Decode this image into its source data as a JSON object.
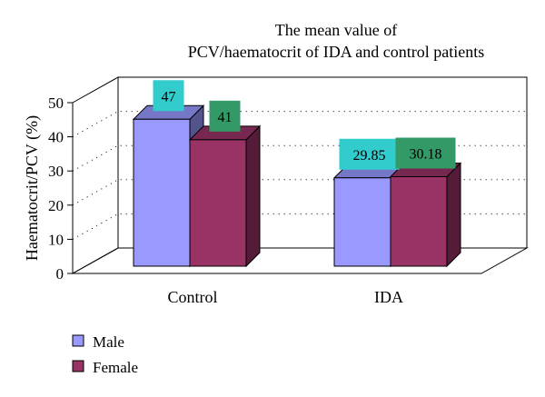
{
  "chart_data": {
    "type": "bar",
    "title_lines": [
      "The mean value of",
      "PCV/haematocrit of IDA and control patients"
    ],
    "xlabel": "",
    "ylabel": "Haematocrit/PCV (%)",
    "categories": [
      "Control",
      "IDA"
    ],
    "series": [
      {
        "name": "Male",
        "values": [
          47,
          29.85
        ],
        "labels": [
          "47",
          "29.85"
        ],
        "color": "#9999ff",
        "label_bg": "#33cccc"
      },
      {
        "name": "Female",
        "values": [
          41,
          30.18
        ],
        "labels": [
          "41",
          "30.18"
        ],
        "color": "#993366",
        "label_bg": "#339966"
      }
    ],
    "yticks": [
      "0",
      "10",
      "20",
      "30",
      "40",
      "50"
    ],
    "ylim": [
      0,
      50
    ],
    "grid": "dotted",
    "legend_position": "bottom-left",
    "style": "3d-clustered-column"
  }
}
